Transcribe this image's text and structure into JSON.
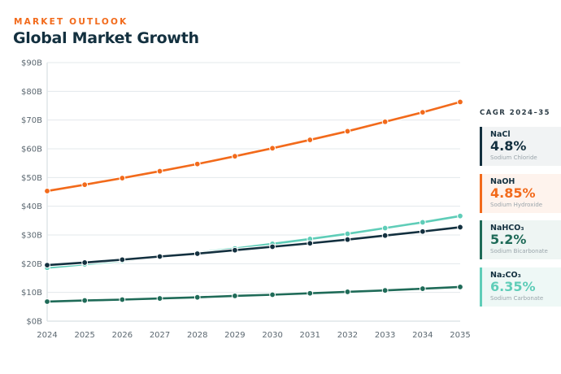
{
  "header": {
    "eyebrow": "MARKET OUTLOOK",
    "title": "Global Market Growth"
  },
  "sidebar": {
    "title": "CAGR 2024–35",
    "cards": [
      {
        "formula": "NaCl",
        "value": "4.8%",
        "name": "Sodium Chloride",
        "color": "#13303f",
        "bg": "#f1f3f4"
      },
      {
        "formula": "NaOH",
        "value": "4.85%",
        "name": "Sodium Hydroxide",
        "color": "#f26a1b",
        "bg": "#fef3ed"
      },
      {
        "formula": "NaHCO₃",
        "value": "5.2%",
        "name": "Sodium Bicarbonate",
        "color": "#1f6b58",
        "bg": "#eef5f3"
      },
      {
        "formula": "Na₂CO₃",
        "value": "6.35%",
        "name": "Sodium Carbonate",
        "color": "#5fcdb8",
        "bg": "#eef8f6"
      }
    ]
  },
  "chart_data": {
    "type": "line",
    "title": "Global Market Growth",
    "xlabel": "",
    "ylabel": "",
    "x": [
      2024,
      2025,
      2026,
      2027,
      2028,
      2029,
      2030,
      2031,
      2032,
      2033,
      2034,
      2035
    ],
    "y_ticks": [
      "$0B",
      "$10B",
      "$20B",
      "$30B",
      "$40B",
      "$50B",
      "$60B",
      "$70B",
      "$80B",
      "$90B"
    ],
    "ylim": [
      0,
      90
    ],
    "grid": true,
    "series": [
      {
        "name": "NaOH",
        "color": "#f26a1b",
        "values": [
          45.3,
          47.5,
          49.8,
          52.2,
          54.7,
          57.4,
          60.2,
          63.1,
          66.1,
          69.4,
          72.7,
          76.3
        ]
      },
      {
        "name": "Na2CO3",
        "color": "#5fcdb8",
        "values": [
          18.6,
          19.8,
          21.0,
          22.4,
          23.8,
          25.3,
          26.9,
          28.6,
          30.4,
          32.4,
          34.4,
          36.6
        ]
      },
      {
        "name": "NaCl",
        "color": "#13303f",
        "values": [
          19.5,
          20.4,
          21.4,
          22.5,
          23.5,
          24.7,
          25.9,
          27.1,
          28.4,
          29.8,
          31.2,
          32.7
        ]
      },
      {
        "name": "NaHCO3",
        "color": "#1f6b58",
        "values": [
          6.8,
          7.2,
          7.5,
          7.9,
          8.3,
          8.8,
          9.2,
          9.7,
          10.2,
          10.7,
          11.3,
          11.9
        ]
      }
    ]
  }
}
